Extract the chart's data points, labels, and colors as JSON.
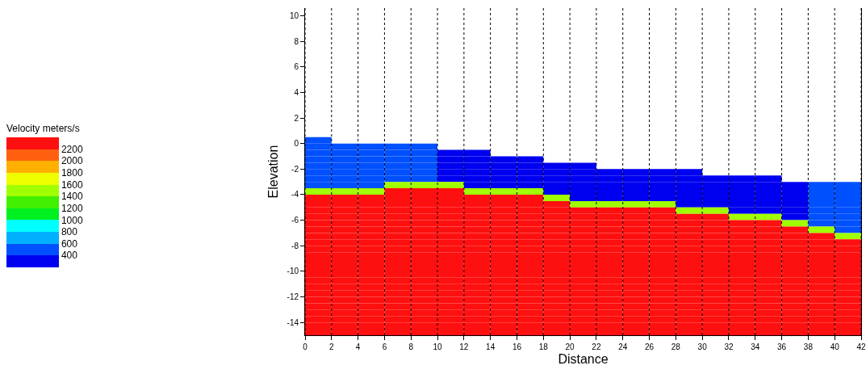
{
  "chart_data": {
    "type": "heatmap",
    "xlabel": "Distance",
    "ylabel": "Elevation",
    "clabel": "Velocity meters/s",
    "x": [
      1,
      3,
      5,
      7,
      9,
      11,
      13,
      15,
      17,
      19,
      21,
      23,
      25,
      27,
      29,
      31,
      33,
      35,
      37,
      39,
      41
    ],
    "y": [
      0.25,
      -0.25,
      -0.75,
      -1.25,
      -1.75,
      -2.25,
      -2.75,
      -3.25,
      -3.75,
      -4.25,
      -4.75,
      -5.25,
      -5.75,
      -6.25,
      -6.75,
      -7.25,
      -7.75,
      -8.25,
      -8.75,
      -9.25,
      -9.75,
      -10.25,
      -10.75,
      -11.25,
      -11.75,
      -12.25,
      -12.75,
      -13.25,
      -13.75,
      -14.25,
      -14.75
    ],
    "cells": [
      [
        500,
        null,
        null,
        null,
        null,
        null,
        null,
        null,
        null,
        null,
        null,
        null,
        null,
        null,
        null,
        null,
        null,
        null,
        null,
        null,
        null
      ],
      [
        500,
        500,
        500,
        500,
        500,
        null,
        null,
        null,
        null,
        null,
        null,
        null,
        null,
        null,
        null,
        null,
        null,
        null,
        null,
        null,
        null
      ],
      [
        500,
        500,
        500,
        500,
        500,
        300,
        300,
        null,
        null,
        null,
        null,
        null,
        null,
        null,
        null,
        null,
        null,
        null,
        null,
        null,
        null
      ],
      [
        500,
        500,
        500,
        500,
        500,
        300,
        300,
        300,
        300,
        null,
        null,
        null,
        null,
        null,
        null,
        null,
        null,
        null,
        null,
        null,
        null
      ],
      [
        500,
        500,
        500,
        500,
        500,
        300,
        300,
        300,
        300,
        300,
        300,
        null,
        null,
        null,
        null,
        null,
        null,
        null,
        null,
        null,
        null
      ],
      [
        500,
        500,
        500,
        500,
        500,
        300,
        300,
        300,
        300,
        300,
        300,
        300,
        300,
        300,
        300,
        null,
        null,
        null,
        null,
        null,
        null
      ],
      [
        500,
        500,
        500,
        500,
        500,
        300,
        300,
        300,
        300,
        300,
        300,
        300,
        300,
        300,
        300,
        300,
        300,
        300,
        null,
        null,
        null
      ],
      [
        500,
        500,
        500,
        1500,
        1500,
        1500,
        300,
        300,
        300,
        300,
        300,
        300,
        300,
        300,
        300,
        300,
        300,
        300,
        300,
        500,
        500
      ],
      [
        1500,
        1500,
        1500,
        2300,
        2300,
        2300,
        1500,
        1500,
        1500,
        300,
        300,
        300,
        300,
        300,
        300,
        300,
        300,
        300,
        300,
        500,
        500
      ],
      [
        2300,
        2300,
        2300,
        2300,
        2300,
        2300,
        2300,
        2300,
        2300,
        1500,
        300,
        300,
        300,
        300,
        300,
        300,
        300,
        300,
        300,
        500,
        500
      ],
      [
        2300,
        2300,
        2300,
        2300,
        2300,
        2300,
        2300,
        2300,
        2300,
        2300,
        1500,
        1500,
        1500,
        1500,
        300,
        300,
        300,
        300,
        300,
        500,
        500
      ],
      [
        2300,
        2300,
        2300,
        2300,
        2300,
        2300,
        2300,
        2300,
        2300,
        2300,
        2300,
        2300,
        2300,
        2300,
        1500,
        1500,
        300,
        300,
        300,
        500,
        500
      ],
      [
        2300,
        2300,
        2300,
        2300,
        2300,
        2300,
        2300,
        2300,
        2300,
        2300,
        2300,
        2300,
        2300,
        2300,
        2300,
        2300,
        1500,
        1500,
        300,
        500,
        500
      ],
      [
        2300,
        2300,
        2300,
        2300,
        2300,
        2300,
        2300,
        2300,
        2300,
        2300,
        2300,
        2300,
        2300,
        2300,
        2300,
        2300,
        2300,
        2300,
        1500,
        500,
        500
      ],
      [
        2300,
        2300,
        2300,
        2300,
        2300,
        2300,
        2300,
        2300,
        2300,
        2300,
        2300,
        2300,
        2300,
        2300,
        2300,
        2300,
        2300,
        2300,
        2300,
        1500,
        500
      ],
      [
        2300,
        2300,
        2300,
        2300,
        2300,
        2300,
        2300,
        2300,
        2300,
        2300,
        2300,
        2300,
        2300,
        2300,
        2300,
        2300,
        2300,
        2300,
        2300,
        2300,
        1500
      ],
      [
        2300,
        2300,
        2300,
        2300,
        2300,
        2300,
        2300,
        2300,
        2300,
        2300,
        2300,
        2300,
        2300,
        2300,
        2300,
        2300,
        2300,
        2300,
        2300,
        2300,
        2300
      ],
      [
        2300,
        2300,
        2300,
        2300,
        2300,
        2300,
        2300,
        2300,
        2300,
        2300,
        2300,
        2300,
        2300,
        2300,
        2300,
        2300,
        2300,
        2300,
        2300,
        2300,
        2300
      ],
      [
        2300,
        2300,
        2300,
        2300,
        2300,
        2300,
        2300,
        2300,
        2300,
        2300,
        2300,
        2300,
        2300,
        2300,
        2300,
        2300,
        2300,
        2300,
        2300,
        2300,
        2300
      ],
      [
        2300,
        2300,
        2300,
        2300,
        2300,
        2300,
        2300,
        2300,
        2300,
        2300,
        2300,
        2300,
        2300,
        2300,
        2300,
        2300,
        2300,
        2300,
        2300,
        2300,
        2300
      ],
      [
        2300,
        2300,
        2300,
        2300,
        2300,
        2300,
        2300,
        2300,
        2300,
        2300,
        2300,
        2300,
        2300,
        2300,
        2300,
        2300,
        2300,
        2300,
        2300,
        2300,
        2300
      ],
      [
        2300,
        2300,
        2300,
        2300,
        2300,
        2300,
        2300,
        2300,
        2300,
        2300,
        2300,
        2300,
        2300,
        2300,
        2300,
        2300,
        2300,
        2300,
        2300,
        2300,
        2300
      ],
      [
        2300,
        2300,
        2300,
        2300,
        2300,
        2300,
        2300,
        2300,
        2300,
        2300,
        2300,
        2300,
        2300,
        2300,
        2300,
        2300,
        2300,
        2300,
        2300,
        2300,
        2300
      ],
      [
        2300,
        2300,
        2300,
        2300,
        2300,
        2300,
        2300,
        2300,
        2300,
        2300,
        2300,
        2300,
        2300,
        2300,
        2300,
        2300,
        2300,
        2300,
        2300,
        2300,
        2300
      ],
      [
        2300,
        2300,
        2300,
        2300,
        2300,
        2300,
        2300,
        2300,
        2300,
        2300,
        2300,
        2300,
        2300,
        2300,
        2300,
        2300,
        2300,
        2300,
        2300,
        2300,
        2300
      ],
      [
        2300,
        2300,
        2300,
        2300,
        2300,
        2300,
        2300,
        2300,
        2300,
        2300,
        2300,
        2300,
        2300,
        2300,
        2300,
        2300,
        2300,
        2300,
        2300,
        2300,
        2300
      ],
      [
        2300,
        2300,
        2300,
        2300,
        2300,
        2300,
        2300,
        2300,
        2300,
        2300,
        2300,
        2300,
        2300,
        2300,
        2300,
        2300,
        2300,
        2300,
        2300,
        2300,
        2300
      ],
      [
        2300,
        2300,
        2300,
        2300,
        2300,
        2300,
        2300,
        2300,
        2300,
        2300,
        2300,
        2300,
        2300,
        2300,
        2300,
        2300,
        2300,
        2300,
        2300,
        2300,
        2300
      ],
      [
        2300,
        2300,
        2300,
        2300,
        2300,
        2300,
        2300,
        2300,
        2300,
        2300,
        2300,
        2300,
        2300,
        2300,
        2300,
        2300,
        2300,
        2300,
        2300,
        2300,
        2300
      ],
      [
        2300,
        2300,
        2300,
        2300,
        2300,
        2300,
        2300,
        2300,
        2300,
        2300,
        2300,
        2300,
        2300,
        2300,
        2300,
        2300,
        2300,
        2300,
        2300,
        2300,
        2300
      ],
      [
        2300,
        2300,
        2300,
        2300,
        2300,
        2300,
        2300,
        2300,
        2300,
        2300,
        2300,
        2300,
        2300,
        2300,
        2300,
        2300,
        2300,
        2300,
        2300,
        2300,
        2300
      ]
    ],
    "clim": [
      200,
      2400
    ],
    "cticks": [
      400,
      600,
      800,
      1000,
      1200,
      1400,
      1600,
      1800,
      2000,
      2200
    ],
    "colors": [
      "#0000f0",
      "#0050ff",
      "#00b0ff",
      "#00ffff",
      "#00f020",
      "#40f000",
      "#a0ff00",
      "#f0ff00",
      "#ffb000",
      "#ff6010",
      "#ff1010"
    ],
    "xlim": [
      0,
      42
    ],
    "xticks": [
      0,
      2,
      4,
      6,
      8,
      10,
      12,
      14,
      16,
      18,
      20,
      22,
      24,
      26,
      28,
      30,
      32,
      34,
      36,
      38,
      40,
      42
    ],
    "ylim": [
      -15,
      10.6
    ],
    "yticks": [
      -14,
      -12,
      -10,
      -8,
      -6,
      -4,
      -2,
      0,
      2,
      4,
      6,
      8,
      10
    ],
    "grid": "x"
  }
}
